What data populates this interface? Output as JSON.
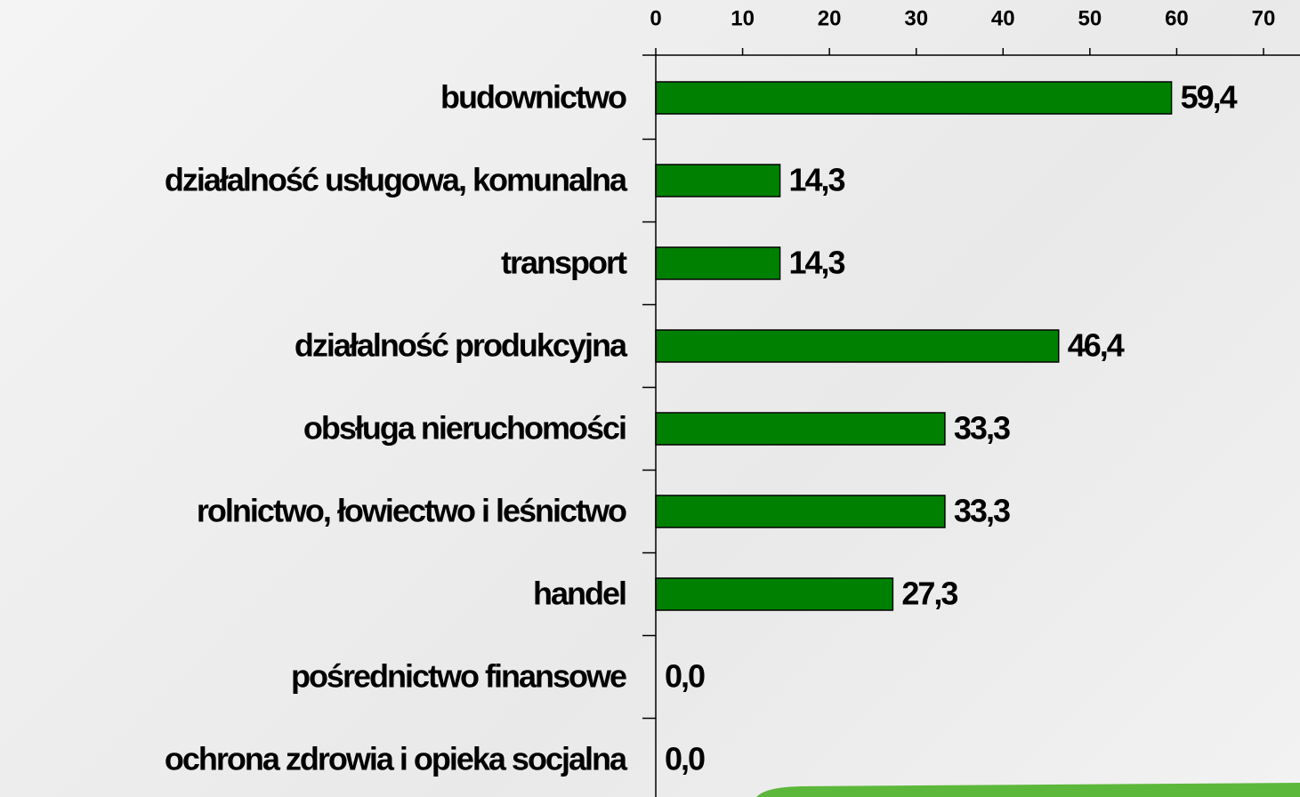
{
  "chart_data": {
    "type": "bar",
    "orientation": "horizontal",
    "categories": [
      "budownictwo",
      "działalność usługowa, komunalna",
      "transport",
      "działalność produkcyjna",
      "obsługa nieruchomości",
      "rolnictwo, łowiectwo i leśnictwo",
      "handel",
      "pośrednictwo finansowe",
      "ochrona zdrowia i opieka socjalna"
    ],
    "values": [
      59.4,
      14.3,
      14.3,
      46.4,
      33.3,
      33.3,
      27.3,
      0,
      0
    ],
    "value_labels": [
      "59,4",
      "14,3",
      "14,3",
      "46,4",
      "33,3",
      "33,3",
      "27,3",
      "0,0",
      "0,0"
    ],
    "color": "#008000",
    "xlim": [
      0,
      70
    ],
    "xticks": [
      0,
      10,
      20,
      30,
      40,
      50,
      60,
      70
    ]
  }
}
